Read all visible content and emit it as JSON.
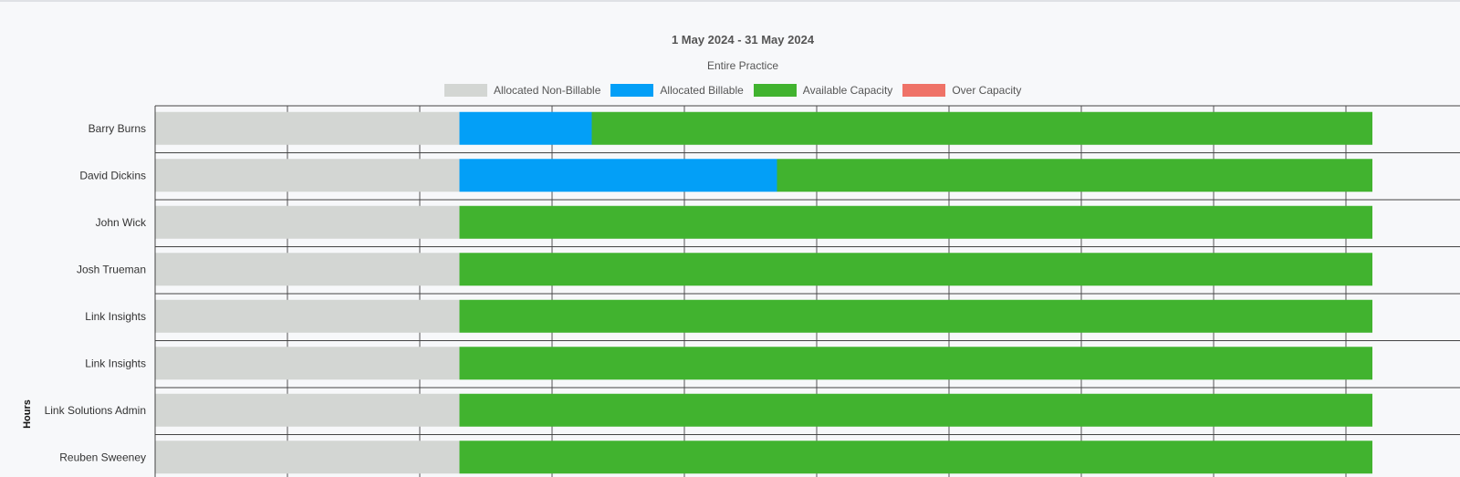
{
  "colors": {
    "background": "#f7f8fa",
    "gridline": "#555555",
    "row_separator": "#444444"
  },
  "chart_data": {
    "type": "bar",
    "orientation": "horizontal",
    "stacked": true,
    "title": "1 May 2024 - 31 May 2024",
    "subtitle": "Entire Practice",
    "ylabel": "Hours",
    "xlabel": "",
    "categories": [
      "Barry Burns",
      "David Dickins",
      "John Wick",
      "Josh Trueman",
      "Link Insights",
      "Link Insights",
      "Link Solutions Admin",
      "Reuben Sweeney"
    ],
    "series": [
      {
        "name": "Allocated Non-Billable",
        "color": "#d3d6d3",
        "values": [
          23,
          23,
          23,
          23,
          23,
          23,
          23,
          23
        ]
      },
      {
        "name": "Allocated Billable",
        "color": "#039ff7",
        "values": [
          10,
          24,
          0,
          0,
          0,
          0,
          0,
          0
        ]
      },
      {
        "name": "Available Capacity",
        "color": "#41b32f",
        "values": [
          59,
          45,
          69,
          69,
          69,
          69,
          69,
          69
        ]
      },
      {
        "name": "Over Capacity",
        "color": "#ef7267",
        "values": [
          0,
          0,
          0,
          0,
          0,
          0,
          0,
          0
        ]
      }
    ],
    "xlim": [
      0,
      100
    ],
    "grid": true,
    "legend_position": "top-center"
  }
}
